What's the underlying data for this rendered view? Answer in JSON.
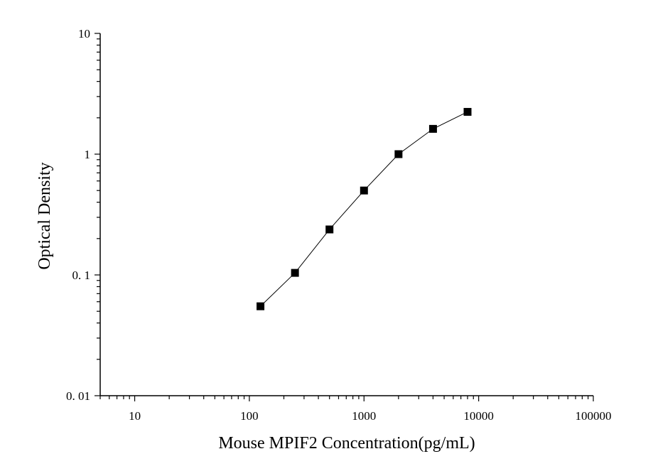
{
  "chart_data": {
    "type": "scatter",
    "title": "",
    "xlabel": "Mouse MPIF2 Concentration(pg/mL)",
    "ylabel": "Optical Density",
    "xscale": "log",
    "yscale": "log",
    "xlim": [
      5,
      100000
    ],
    "ylim": [
      0.01,
      10
    ],
    "x_ticks": [
      10,
      100,
      1000,
      10000,
      100000
    ],
    "x_tick_labels": [
      "10",
      "100",
      "1000",
      "10000",
      "100000"
    ],
    "y_ticks": [
      0.01,
      0.1,
      1,
      10
    ],
    "y_tick_labels": [
      "0. 01",
      "0. 1",
      "1",
      "10"
    ],
    "grid": false,
    "legend": "none",
    "marker": "square",
    "connect_points": true,
    "marker_color": "#000000",
    "line_color": "#000000",
    "series": [
      {
        "x": [
          125,
          250,
          500,
          1000,
          2000,
          4000,
          8000
        ],
        "y": [
          0.055,
          0.104,
          0.238,
          0.5,
          1.0,
          1.62,
          2.24
        ]
      }
    ]
  }
}
